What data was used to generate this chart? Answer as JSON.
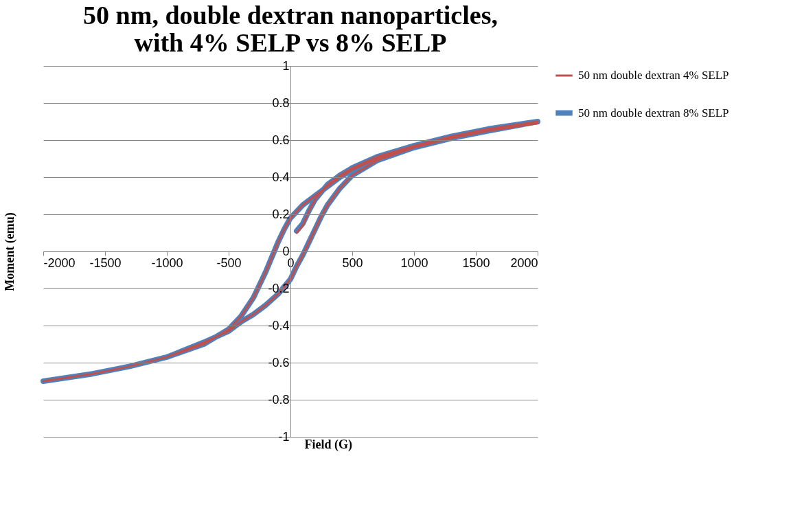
{
  "chart_data": {
    "type": "line",
    "title": "50 nm, double dextran nanoparticles, with 4% SELP vs 8% SELP",
    "xlabel": "Field (G)",
    "ylabel": "Moment (emu)",
    "xlim": [
      -2000,
      2000
    ],
    "xticks": [
      -2000,
      -1500,
      -1000,
      -500,
      0,
      500,
      1000,
      1500,
      2000
    ],
    "ylim": [
      -1,
      1
    ],
    "yticks": [
      -1,
      -0.8,
      -0.6,
      -0.4,
      -0.2,
      0,
      0.2,
      0.4,
      0.6,
      0.8,
      1
    ],
    "grid": "y",
    "legend": "right",
    "marker": "none",
    "line_style": "solid",
    "series": [
      {
        "name": "50 nm double dextran 4% SELP",
        "color": "#c0504d",
        "x": [
          50,
          100,
          150,
          200,
          300,
          400,
          500,
          700,
          1000,
          1300,
          1600,
          2000,
          1600,
          1300,
          1000,
          700,
          500,
          400,
          300,
          200,
          100,
          0,
          -50,
          -100,
          -150,
          -200,
          -250,
          -300,
          -400,
          -500,
          -700,
          -1000,
          -1300,
          -1600,
          -2000,
          -1600,
          -1300,
          -1000,
          -700,
          -500,
          -400,
          -300,
          -200,
          -100,
          0,
          50,
          100,
          150,
          200,
          250,
          300,
          400,
          500,
          700,
          1000,
          1300,
          1600,
          2000
        ],
        "values": [
          0.1,
          0.14,
          0.22,
          0.28,
          0.36,
          0.41,
          0.45,
          0.51,
          0.57,
          0.62,
          0.66,
          0.7,
          0.66,
          0.62,
          0.57,
          0.5,
          0.44,
          0.4,
          0.35,
          0.3,
          0.25,
          0.18,
          0.12,
          0.05,
          -0.03,
          -0.11,
          -0.18,
          -0.25,
          -0.35,
          -0.42,
          -0.5,
          -0.57,
          -0.62,
          -0.66,
          -0.7,
          -0.66,
          -0.62,
          -0.57,
          -0.49,
          -0.43,
          -0.38,
          -0.34,
          -0.29,
          -0.23,
          -0.15,
          -0.08,
          -0.02,
          0.05,
          0.12,
          0.19,
          0.25,
          0.34,
          0.41,
          0.49,
          0.56,
          0.61,
          0.65,
          0.69
        ]
      },
      {
        "name": "50 nm double dextran 8% SELP",
        "color": "#4f81bd",
        "x": [
          50,
          100,
          150,
          200,
          300,
          400,
          500,
          700,
          1000,
          1300,
          1600,
          2000,
          1600,
          1300,
          1000,
          700,
          500,
          400,
          300,
          200,
          100,
          0,
          -50,
          -100,
          -150,
          -200,
          -250,
          -300,
          -400,
          -500,
          -700,
          -1000,
          -1300,
          -1600,
          -2000,
          -1600,
          -1300,
          -1000,
          -700,
          -500,
          -400,
          -300,
          -200,
          -100,
          0,
          50,
          100,
          150,
          200,
          250,
          300,
          400,
          500,
          700,
          1000,
          1300,
          1600,
          2000
        ],
        "values": [
          0.11,
          0.15,
          0.22,
          0.28,
          0.36,
          0.41,
          0.45,
          0.51,
          0.57,
          0.62,
          0.66,
          0.7,
          0.66,
          0.62,
          0.57,
          0.5,
          0.44,
          0.4,
          0.35,
          0.3,
          0.25,
          0.18,
          0.12,
          0.05,
          -0.03,
          -0.11,
          -0.18,
          -0.25,
          -0.35,
          -0.42,
          -0.5,
          -0.57,
          -0.62,
          -0.66,
          -0.7,
          -0.66,
          -0.62,
          -0.57,
          -0.49,
          -0.43,
          -0.38,
          -0.34,
          -0.29,
          -0.23,
          -0.15,
          -0.08,
          -0.02,
          0.05,
          0.12,
          0.19,
          0.25,
          0.34,
          0.41,
          0.49,
          0.56,
          0.61,
          0.65,
          0.7
        ]
      }
    ]
  }
}
